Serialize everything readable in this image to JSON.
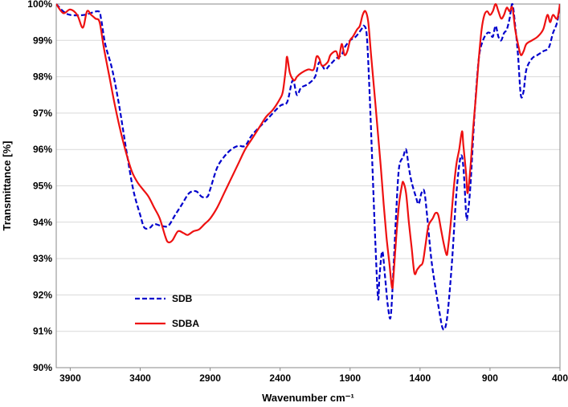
{
  "chart_data": {
    "type": "line",
    "title": "",
    "xlabel": "Wavenumber cm⁻¹",
    "ylabel": "Transmittance [%]",
    "xlim": [
      4000,
      400
    ],
    "x_reversed": true,
    "ylim": [
      90,
      100
    ],
    "x_ticks": [
      3900,
      3400,
      2900,
      2400,
      1900,
      1400,
      900,
      400
    ],
    "y_ticks": [
      90,
      91,
      92,
      93,
      94,
      95,
      96,
      97,
      98,
      99,
      100
    ],
    "y_tick_suffix": "%",
    "grid": "horizontal",
    "legend_position": "bottom-left",
    "series": [
      {
        "name": "SDB",
        "color": "#0000cc",
        "style": "dashed",
        "points": [
          [
            4000,
            100.0
          ],
          [
            3950,
            99.8
          ],
          [
            3900,
            99.7
          ],
          [
            3800,
            99.7
          ],
          [
            3700,
            99.8
          ],
          [
            3680,
            99.6
          ],
          [
            3650,
            98.9
          ],
          [
            3600,
            98.2
          ],
          [
            3550,
            97.2
          ],
          [
            3500,
            96.0
          ],
          [
            3450,
            94.9
          ],
          [
            3400,
            94.2
          ],
          [
            3370,
            93.85
          ],
          [
            3330,
            93.85
          ],
          [
            3300,
            93.95
          ],
          [
            3250,
            93.9
          ],
          [
            3200,
            93.9
          ],
          [
            3150,
            94.2
          ],
          [
            3100,
            94.5
          ],
          [
            3050,
            94.8
          ],
          [
            3000,
            94.85
          ],
          [
            2960,
            94.7
          ],
          [
            2920,
            94.7
          ],
          [
            2900,
            94.9
          ],
          [
            2850,
            95.5
          ],
          [
            2800,
            95.8
          ],
          [
            2750,
            96.0
          ],
          [
            2700,
            96.1
          ],
          [
            2650,
            96.1
          ],
          [
            2600,
            96.4
          ],
          [
            2500,
            96.8
          ],
          [
            2400,
            97.2
          ],
          [
            2350,
            97.3
          ],
          [
            2310,
            97.9
          ],
          [
            2280,
            97.5
          ],
          [
            2250,
            97.7
          ],
          [
            2200,
            97.8
          ],
          [
            2150,
            98.0
          ],
          [
            2120,
            98.4
          ],
          [
            2080,
            98.2
          ],
          [
            2050,
            98.3
          ],
          [
            2000,
            98.5
          ],
          [
            1960,
            98.6
          ],
          [
            1940,
            98.8
          ],
          [
            1900,
            99.0
          ],
          [
            1860,
            99.1
          ],
          [
            1820,
            99.3
          ],
          [
            1800,
            99.4
          ],
          [
            1780,
            99.1
          ],
          [
            1760,
            97.5
          ],
          [
            1740,
            95.5
          ],
          [
            1720,
            93.5
          ],
          [
            1700,
            91.9
          ],
          [
            1690,
            92.5
          ],
          [
            1670,
            93.2
          ],
          [
            1650,
            92.5
          ],
          [
            1630,
            91.7
          ],
          [
            1610,
            91.4
          ],
          [
            1590,
            92.7
          ],
          [
            1570,
            94.3
          ],
          [
            1550,
            95.5
          ],
          [
            1520,
            95.8
          ],
          [
            1500,
            96.0
          ],
          [
            1480,
            95.5
          ],
          [
            1460,
            95.1
          ],
          [
            1430,
            94.7
          ],
          [
            1410,
            94.5
          ],
          [
            1390,
            94.8
          ],
          [
            1370,
            94.85
          ],
          [
            1350,
            94.2
          ],
          [
            1320,
            93.0
          ],
          [
            1290,
            92.2
          ],
          [
            1260,
            91.5
          ],
          [
            1240,
            91.1
          ],
          [
            1220,
            91.1
          ],
          [
            1200,
            91.6
          ],
          [
            1170,
            93.0
          ],
          [
            1140,
            94.8
          ],
          [
            1110,
            95.8
          ],
          [
            1090,
            95.5
          ],
          [
            1070,
            94.2
          ],
          [
            1060,
            94.2
          ],
          [
            1040,
            95.0
          ],
          [
            1010,
            97.0
          ],
          [
            980,
            98.5
          ],
          [
            950,
            99.0
          ],
          [
            920,
            99.2
          ],
          [
            900,
            99.2
          ],
          [
            880,
            99.1
          ],
          [
            860,
            99.4
          ],
          [
            840,
            99.1
          ],
          [
            820,
            99.0
          ],
          [
            800,
            99.2
          ],
          [
            780,
            99.3
          ],
          [
            760,
            99.6
          ],
          [
            740,
            100.0
          ],
          [
            720,
            99.4
          ],
          [
            700,
            98.6
          ],
          [
            680,
            97.5
          ],
          [
            660,
            97.6
          ],
          [
            640,
            98.2
          ],
          [
            600,
            98.5
          ],
          [
            560,
            98.6
          ],
          [
            520,
            98.7
          ],
          [
            480,
            98.8
          ],
          [
            450,
            99.2
          ],
          [
            420,
            99.5
          ],
          [
            400,
            100.0
          ]
        ]
      },
      {
        "name": "SDBA",
        "color": "#ee1111",
        "style": "solid",
        "points": [
          [
            4000,
            100.0
          ],
          [
            3950,
            99.75
          ],
          [
            3900,
            99.85
          ],
          [
            3850,
            99.7
          ],
          [
            3810,
            99.35
          ],
          [
            3780,
            99.8
          ],
          [
            3750,
            99.7
          ],
          [
            3720,
            99.6
          ],
          [
            3690,
            99.5
          ],
          [
            3660,
            98.8
          ],
          [
            3620,
            98.0
          ],
          [
            3580,
            97.2
          ],
          [
            3540,
            96.5
          ],
          [
            3500,
            95.9
          ],
          [
            3460,
            95.4
          ],
          [
            3420,
            95.1
          ],
          [
            3380,
            94.9
          ],
          [
            3340,
            94.7
          ],
          [
            3300,
            94.4
          ],
          [
            3260,
            94.1
          ],
          [
            3220,
            93.6
          ],
          [
            3200,
            93.45
          ],
          [
            3170,
            93.5
          ],
          [
            3130,
            93.75
          ],
          [
            3090,
            93.7
          ],
          [
            3060,
            93.65
          ],
          [
            3020,
            93.75
          ],
          [
            2980,
            93.8
          ],
          [
            2940,
            93.95
          ],
          [
            2900,
            94.1
          ],
          [
            2850,
            94.4
          ],
          [
            2800,
            94.8
          ],
          [
            2750,
            95.2
          ],
          [
            2700,
            95.6
          ],
          [
            2650,
            96.0
          ],
          [
            2600,
            96.3
          ],
          [
            2550,
            96.6
          ],
          [
            2500,
            96.9
          ],
          [
            2450,
            97.1
          ],
          [
            2400,
            97.4
          ],
          [
            2380,
            97.6
          ],
          [
            2360,
            98.2
          ],
          [
            2350,
            98.55
          ],
          [
            2330,
            98.1
          ],
          [
            2300,
            97.9
          ],
          [
            2280,
            98.0
          ],
          [
            2250,
            98.1
          ],
          [
            2200,
            98.2
          ],
          [
            2160,
            98.2
          ],
          [
            2140,
            98.55
          ],
          [
            2120,
            98.5
          ],
          [
            2100,
            98.3
          ],
          [
            2060,
            98.4
          ],
          [
            2040,
            98.6
          ],
          [
            2000,
            98.7
          ],
          [
            1980,
            98.5
          ],
          [
            1960,
            98.9
          ],
          [
            1940,
            98.6
          ],
          [
            1920,
            98.7
          ],
          [
            1900,
            99.0
          ],
          [
            1880,
            99.1
          ],
          [
            1850,
            99.3
          ],
          [
            1830,
            99.4
          ],
          [
            1810,
            99.7
          ],
          [
            1790,
            99.8
          ],
          [
            1770,
            99.5
          ],
          [
            1750,
            98.6
          ],
          [
            1720,
            97.3
          ],
          [
            1700,
            96.4
          ],
          [
            1680,
            95.5
          ],
          [
            1660,
            94.5
          ],
          [
            1640,
            93.6
          ],
          [
            1620,
            92.9
          ],
          [
            1600,
            92.2
          ],
          [
            1590,
            92.5
          ],
          [
            1570,
            93.6
          ],
          [
            1550,
            94.5
          ],
          [
            1530,
            95.0
          ],
          [
            1520,
            95.1
          ],
          [
            1500,
            94.8
          ],
          [
            1480,
            94.0
          ],
          [
            1460,
            93.3
          ],
          [
            1440,
            92.6
          ],
          [
            1420,
            92.7
          ],
          [
            1400,
            92.8
          ],
          [
            1380,
            92.9
          ],
          [
            1360,
            93.4
          ],
          [
            1340,
            93.9
          ],
          [
            1310,
            94.1
          ],
          [
            1290,
            94.25
          ],
          [
            1270,
            94.2
          ],
          [
            1250,
            93.8
          ],
          [
            1230,
            93.4
          ],
          [
            1210,
            93.1
          ],
          [
            1200,
            93.3
          ],
          [
            1180,
            94.0
          ],
          [
            1160,
            94.9
          ],
          [
            1140,
            95.6
          ],
          [
            1120,
            96.0
          ],
          [
            1100,
            96.5
          ],
          [
            1090,
            96.1
          ],
          [
            1070,
            95.3
          ],
          [
            1060,
            94.8
          ],
          [
            1040,
            95.5
          ],
          [
            1020,
            96.6
          ],
          [
            1000,
            97.5
          ],
          [
            980,
            98.5
          ],
          [
            960,
            99.3
          ],
          [
            940,
            99.7
          ],
          [
            920,
            99.8
          ],
          [
            900,
            99.7
          ],
          [
            880,
            99.8
          ],
          [
            860,
            100.0
          ],
          [
            840,
            99.8
          ],
          [
            820,
            99.6
          ],
          [
            800,
            99.7
          ],
          [
            780,
            99.9
          ],
          [
            760,
            99.8
          ],
          [
            740,
            99.9
          ],
          [
            720,
            99.3
          ],
          [
            700,
            98.9
          ],
          [
            680,
            98.6
          ],
          [
            660,
            98.7
          ],
          [
            640,
            98.9
          ],
          [
            600,
            99.0
          ],
          [
            560,
            99.1
          ],
          [
            520,
            99.3
          ],
          [
            490,
            99.7
          ],
          [
            470,
            99.5
          ],
          [
            450,
            99.7
          ],
          [
            420,
            99.6
          ],
          [
            400,
            100.0
          ]
        ]
      }
    ]
  }
}
